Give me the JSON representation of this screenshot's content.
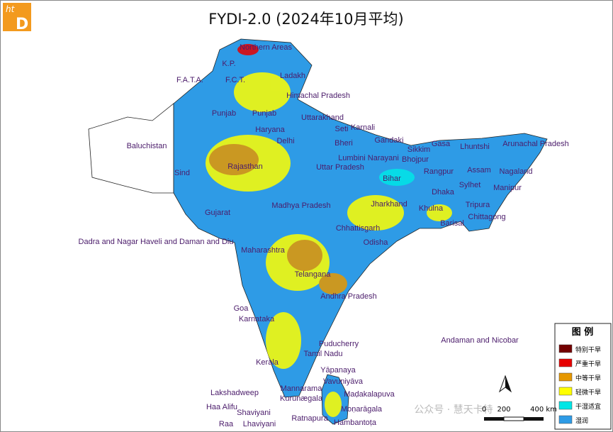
{
  "logo": {
    "top": "ht",
    "bottom": "D"
  },
  "title": "FYDI-2.0 (2024年10月平均)",
  "labels": [
    "Northern Areas",
    "K.P.",
    "Ladakh",
    "F.A.T.A.",
    "F.C.T.",
    "Himachal Pradesh",
    "Punjab",
    "Punjab",
    "Uttarakhand",
    "Karnali",
    "Seti",
    "Haryana",
    "Bheri",
    "Gandaki",
    "Baluchistan",
    "Delhi",
    "Gasa",
    "Lhuntshi",
    "Arunachal Pradesh",
    "Sikkim",
    "Lumbini Narayani",
    "Bhojpur",
    "Sind",
    "Rajasthan",
    "Uttar Pradesh",
    "Assam",
    "Nagaland",
    "Rangpur",
    "Bihar",
    "Sylhet",
    "Manipur",
    "Dhaka",
    "Madhya Pradesh",
    "Jharkhand",
    "Khulna",
    "Tripura",
    "Gujarat",
    "Barisal",
    "Chittagong",
    "Chhattisgarh",
    "Dadra and Nagar Haveli and Daman and Diu",
    "Odisha",
    "Maharashtra",
    "Telangana",
    "Andhra Pradesh",
    "Goa",
    "Karnataka",
    "Puducherry",
    "Andaman and Nicobar",
    "Tamil Nadu",
    "Kerala",
    "Yāpanaya",
    "Vavuniyāva",
    "Mannarama",
    "Lakshadweep",
    "Maḍakalapuva",
    "Kurunægala",
    "Haa Alifu",
    "Moṇarāgala",
    "Shaviyani",
    "Ratnapura",
    "Hambantoṭa",
    "Raa",
    "Lhaviyani"
  ],
  "legend": {
    "title": "图 例",
    "items": [
      {
        "label": "特别干旱",
        "color": "#730000"
      },
      {
        "label": "严重干旱",
        "color": "#e60000"
      },
      {
        "label": "中等干旱",
        "color": "#e69800"
      },
      {
        "label": "轻微干旱",
        "color": "#ffff00"
      },
      {
        "label": "干湿适宜",
        "color": "#00e6e6"
      },
      {
        "label": "湿润",
        "color": "#2e9be6"
      }
    ]
  },
  "scale": {
    "ticks": [
      "0",
      "200",
      "400 km"
    ]
  },
  "watermark": "公众号 · 慧天卡特"
}
